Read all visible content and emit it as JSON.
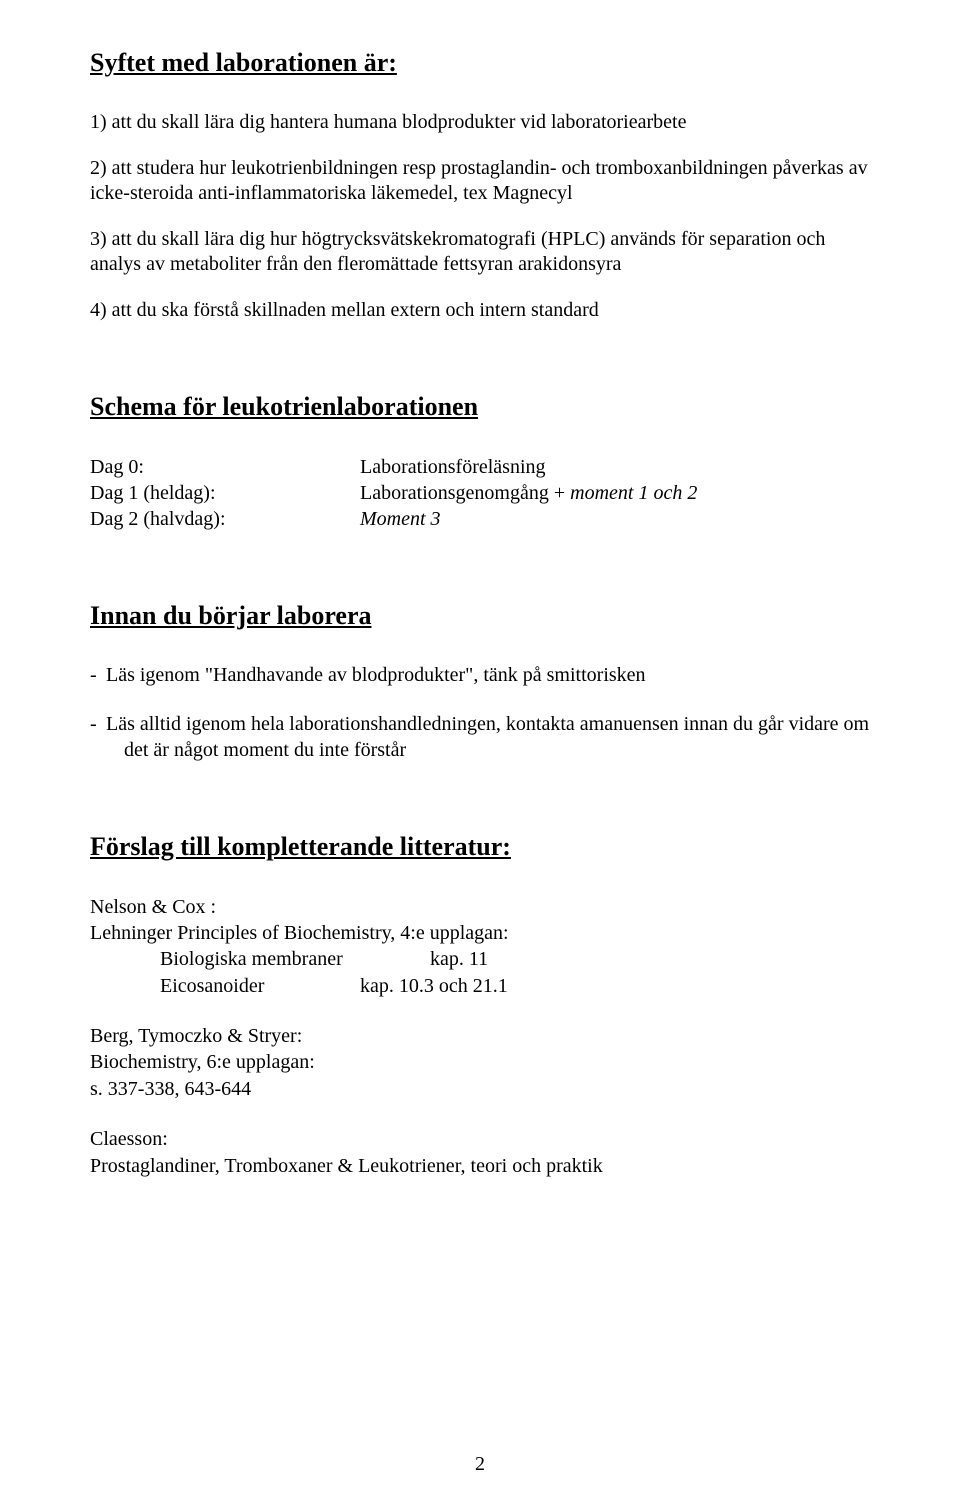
{
  "purpose": {
    "heading": "Syftet med laborationen är:",
    "items": [
      "1) att du skall lära dig hantera humana blodprodukter vid laboratoriearbete",
      "2) att studera hur leukotrienbildningen resp prostaglandin- och tromboxanbildningen påverkas av icke-steroida anti-inflammatoriska läkemedel, tex Magnecyl",
      "3) att du skall lära dig hur högtrycksvätskekromatografi (HPLC) används för separation och analys av metaboliter från den fleromättade fettsyran arakidonsyra",
      "4) att du ska förstå skillnaden mellan extern och intern standard"
    ]
  },
  "schedule": {
    "heading": "Schema för leukotrienlaborationen",
    "rows": [
      {
        "label": "Dag 0:",
        "value": "Laborationsföreläsning"
      },
      {
        "label": "Dag 1 (heldag):",
        "value_prefix": "Laborationsgenomgång + ",
        "value_italic": "moment 1 och 2"
      },
      {
        "label": "Dag 2 (halvdag):",
        "value_italic": "Moment 3"
      }
    ]
  },
  "before": {
    "heading": "Innan du börjar laborera",
    "items": [
      "Läs igenom \"Handhavande av blodprodukter\", tänk på smittorisken",
      "Läs alltid igenom hela laborationshandledningen, kontakta amanuensen innan du går vidare om det är något moment du inte förstår"
    ]
  },
  "literature": {
    "heading": "Förslag till kompletterande litteratur:",
    "nelson": {
      "author": "Nelson & Cox :",
      "book": "Lehninger Principles of Biochemistry, 4:e upplagan:",
      "chapters": [
        {
          "label": "Biologiska membraner",
          "value": "kap. 11"
        },
        {
          "label": "Eicosanoider",
          "value": "kap. 10.3 och 21.1"
        }
      ]
    },
    "berg": {
      "author": "Berg, Tymoczko & Stryer:",
      "book": "Biochemistry, 6:e upplagan:",
      "pages": "s. 337-338, 643-644"
    },
    "claesson": {
      "author": "Claesson:",
      "title": "Prostaglandiner, Tromboxaner & Leukotriener, teori och praktik"
    }
  },
  "page_number": "2"
}
